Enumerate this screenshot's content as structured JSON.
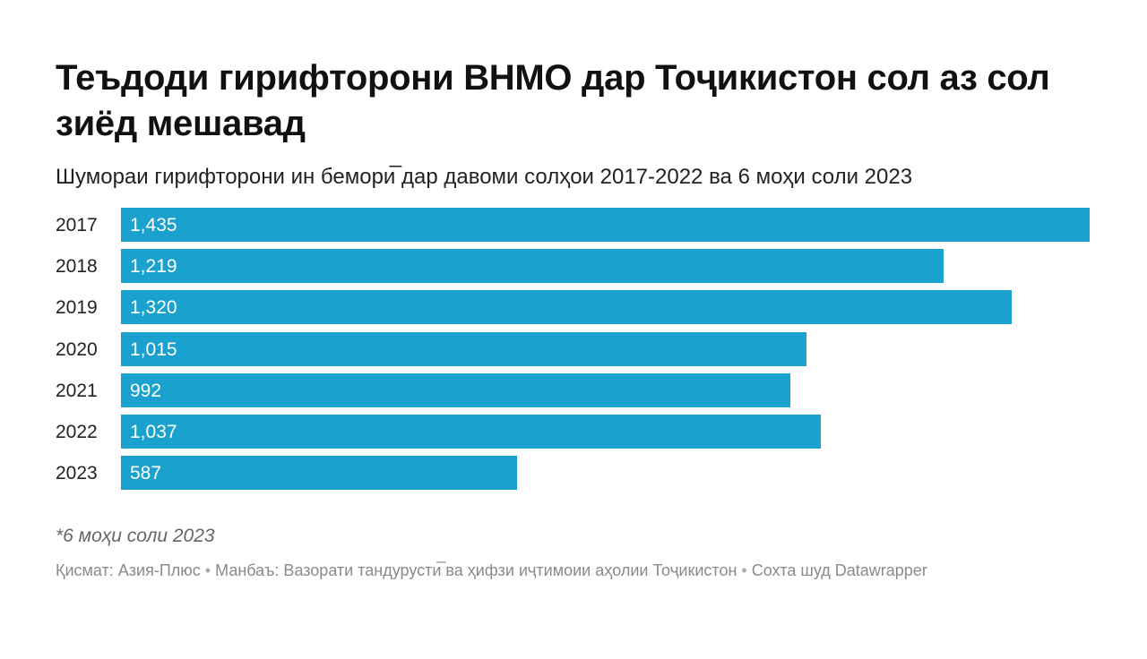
{
  "title": "Теъдоди гирифторони ВНМО дар Тоҷикистон сол аз сол зиёд мешавад",
  "subtitle": "Шумораи гирифторони ин бемори̅ дар давоми солҳои 2017-2022 ва 6 моҳи соли 2023",
  "note": "*6 моҳи соли 2023",
  "footer": {
    "credit": "Қисмат: Азия-Плюс",
    "separator": "•",
    "source": "Манбаъ: Вазорати тандурусти̅ ва ҳифзи иҷтимоии аҳолии Тоҷикистон",
    "made_with": "Сохта шуд Datawrapper"
  },
  "colors": {
    "bar": "#1aa1cd"
  },
  "chart_data": {
    "type": "bar",
    "orientation": "horizontal",
    "title": "Теъдоди гирифторони ВНМО дар Тоҷикистон сол аз сол зиёд мешавад",
    "categories": [
      "2017",
      "2018",
      "2019",
      "2020",
      "2021",
      "2022",
      "2023"
    ],
    "values": [
      1435,
      1219,
      1320,
      1015,
      992,
      1037,
      587
    ],
    "value_labels": [
      "1,435",
      "1,219",
      "1,320",
      "1,015",
      "992",
      "1,037",
      "587"
    ],
    "xlim": [
      0,
      1435
    ],
    "xlabel": "",
    "ylabel": "",
    "grid": false,
    "legend": "none"
  }
}
